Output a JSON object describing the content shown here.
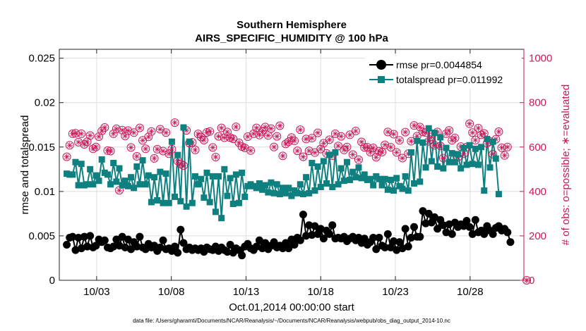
{
  "chart_data": {
    "type": "line",
    "title": [
      "Southern Hemisphere",
      "AIRS_SPECIFIC_HUMIDITY @ 100 hPa"
    ],
    "xlabel": "Oct.01,2014 00:00:00 start",
    "ylabel_left": "rmse and totalspread",
    "ylabel_right": "# of obs: o=possible; ∗=evaluated",
    "footer": "data file: /Users/gharamti/Documents/NCAR/Reanalysis/~/Documents/NCAR/Reanalysis/webpub/obs_diag_output_2014-10.nc",
    "xlim": [
      0.5,
      31.6
    ],
    "x_ticks": [
      {
        "x": 3,
        "label": "10/03"
      },
      {
        "x": 8,
        "label": "10/08"
      },
      {
        "x": 13,
        "label": "10/13"
      },
      {
        "x": 18,
        "label": "10/18"
      },
      {
        "x": 23,
        "label": "10/23"
      },
      {
        "x": 28,
        "label": "10/28"
      }
    ],
    "ylim_left": [
      0,
      0.026
    ],
    "y_ticks_left": [
      {
        "v": 0,
        "label": "0"
      },
      {
        "v": 0.005,
        "label": "0.005"
      },
      {
        "v": 0.01,
        "label": "0.01"
      },
      {
        "v": 0.015,
        "label": "0.015"
      },
      {
        "v": 0.02,
        "label": "0.02"
      },
      {
        "v": 0.025,
        "label": "0.025"
      }
    ],
    "ylim_right": [
      0,
      1040
    ],
    "y_ticks_right": [
      {
        "v": 0,
        "label": "0"
      },
      {
        "v": 200,
        "label": "200"
      },
      {
        "v": 400,
        "label": "400"
      },
      {
        "v": 600,
        "label": "600"
      },
      {
        "v": 800,
        "label": "800"
      },
      {
        "v": 1000,
        "label": "1000"
      }
    ],
    "grid": true,
    "legend": {
      "position": "top-right"
    },
    "colors": {
      "rmse": "#000000",
      "spread": "#0f8080",
      "obs": "#c8195a"
    },
    "series": [
      {
        "name": "rmse pr=0.0044854",
        "values": [
          0.004,
          0.0048,
          0.0049,
          0.0034,
          0.0048,
          0.0036,
          0.0049,
          0.0038,
          0.005,
          0.0037,
          0.0039,
          0.0046,
          0.0043,
          0.0045,
          0.0037,
          0.0036,
          0.0038,
          0.0046,
          0.0039,
          0.0049,
          0.0037,
          0.0046,
          0.0035,
          0.0043,
          0.0038,
          0.0049,
          0.0037,
          0.0035,
          0.0041,
          0.0037,
          0.0039,
          0.0033,
          0.0037,
          0.0045,
          0.0035,
          0.0036,
          0.0033,
          0.0038,
          0.0031,
          0.0057,
          0.0042,
          0.0035,
          0.0037,
          0.0034,
          0.0036,
          0.0034,
          0.0036,
          0.0032,
          0.0037,
          0.0035,
          0.0034,
          0.0038,
          0.0033,
          0.0037,
          0.0034,
          0.0032,
          0.004,
          0.0031,
          0.0036,
          0.0034,
          0.0028,
          0.0038,
          0.0041,
          0.0036,
          0.0034,
          0.0038,
          0.0045,
          0.0036,
          0.0042,
          0.0035,
          0.0039,
          0.0043,
          0.0037,
          0.0039,
          0.0036,
          0.0042,
          0.0036,
          0.0046,
          0.004,
          0.0048,
          0.0045,
          0.0074,
          0.005,
          0.0062,
          0.0051,
          0.0061,
          0.0052,
          0.0058,
          0.0047,
          0.0056,
          0.0052,
          0.0062,
          0.0047,
          0.0048,
          0.0047,
          0.0049,
          0.0044,
          0.0047,
          0.0049,
          0.0045,
          0.0048,
          0.0042,
          0.0047,
          0.004,
          0.0043,
          0.0048,
          0.0035,
          0.0048,
          0.0039,
          0.0037,
          0.0052,
          0.0037,
          0.0044,
          0.0034,
          0.0043,
          0.0036,
          0.0058,
          0.0038,
          0.0048,
          0.006,
          0.0049,
          0.0049,
          0.0078,
          0.0064,
          0.0075,
          0.0065,
          0.0071,
          0.0058,
          0.0068,
          0.0062,
          0.0054,
          0.0063,
          0.0052,
          0.0065,
          0.006,
          0.0063,
          0.0061,
          0.0067,
          0.006,
          0.0052,
          0.0068,
          0.0054,
          0.0056,
          0.0052,
          0.0061,
          0.0056,
          0.0052,
          0.0059,
          0.0061,
          0.0056,
          0.0058,
          0.0054,
          0.0043
        ]
      },
      {
        "name": "totalspread pr=0.011992",
        "values": [
          0.012,
          0.0119,
          0.0119,
          0.0133,
          0.0107,
          0.0131,
          0.0107,
          0.0108,
          0.0125,
          0.0108,
          0.0118,
          0.0112,
          0.0136,
          0.0121,
          0.0119,
          0.0108,
          0.0132,
          0.0111,
          0.0126,
          0.0107,
          0.0112,
          0.0106,
          0.0116,
          0.0104,
          0.0128,
          0.0108,
          0.0135,
          0.0108,
          0.0118,
          0.0088,
          0.0116,
          0.009,
          0.0122,
          0.0087,
          0.012,
          0.0087,
          0.0156,
          0.0094,
          0.0141,
          0.0089,
          0.0172,
          0.0083,
          0.0156,
          0.0087,
          0.0117,
          0.0108,
          0.0114,
          0.0093,
          0.0121,
          0.0088,
          0.0117,
          0.0077,
          0.0117,
          0.007,
          0.0125,
          0.0095,
          0.0115,
          0.0086,
          0.0119,
          0.0087,
          0.0121,
          0.0094,
          0.0106,
          0.0108,
          0.0106,
          0.0104,
          0.0109,
          0.0102,
          0.0107,
          0.0099,
          0.011,
          0.0098,
          0.0108,
          0.0097,
          0.0104,
          0.0098,
          0.0104,
          0.0095,
          0.0101,
          0.0098,
          0.0108,
          0.0097,
          0.0116,
          0.0098,
          0.0132,
          0.0101,
          0.0128,
          0.0105,
          0.0134,
          0.0109,
          0.0141,
          0.0105,
          0.0144,
          0.0108,
          0.0126,
          0.0112,
          0.0133,
          0.0113,
          0.0122,
          0.0116,
          0.0127,
          0.0115,
          0.0119,
          0.0113,
          0.0114,
          0.0107,
          0.0117,
          0.0114,
          0.0107,
          0.0114,
          0.0102,
          0.0113,
          0.0101,
          0.0115,
          0.0106,
          0.0103,
          0.0117,
          0.0101,
          0.0144,
          0.0109,
          0.0157,
          0.0111,
          0.0155,
          0.0127,
          0.0171,
          0.0134,
          0.0166,
          0.0128,
          0.0161,
          0.0126,
          0.0149,
          0.0133,
          0.0143,
          0.0133,
          0.0142,
          0.0126,
          0.0149,
          0.013,
          0.0152,
          0.0131,
          0.0148,
          0.013,
          0.015,
          0.0101,
          0.0159,
          0.0127,
          0.0156,
          0.0137,
          0.0097
        ]
      },
      {
        "name": "obs possible",
        "values": [
          556,
          608,
          660,
          662,
          622,
          660,
          612,
          624,
          652,
          592,
          600,
          647,
          672,
          688,
          584,
          582,
          660,
          682,
          405,
          676,
          650,
          674,
          598,
          665,
          558,
          686,
          630,
          592,
          646,
          670,
          549,
          590,
          680,
          582,
          665,
          570,
          590,
          710,
          538,
          524,
          516,
          675,
          618,
          621,
          587,
          659,
          645,
          631,
          666,
          670,
          598,
          555,
          648,
          686,
          642,
          668,
          642,
          637,
          691,
          619,
          602,
          596,
          647,
          584,
          660,
          686,
          654,
          670,
          690,
          652,
          683,
          600,
          648,
          696,
          560,
          614,
          624,
          643,
          628,
          583,
          678,
          556,
          636,
          583,
          640,
          575,
          664,
          591,
          617,
          571,
          633,
          561,
          660,
          605,
          648,
          587,
          600,
          655,
          566,
          672,
          543,
          623,
          598,
          599,
          577,
          596,
          554,
          581,
          577,
          610,
          668,
          599,
          658,
          576,
          630,
          550,
          667,
          570,
          626,
          697,
          649,
          690,
          668,
          665,
          626,
          646,
          608,
          668,
          605,
          550,
          660,
          675,
          630,
          641,
          554,
          602,
          570,
          600,
          705,
          665,
          631,
          685,
          655,
          661,
          617,
          625,
          568,
          635,
          669,
          597,
          562,
          600
        ]
      },
      {
        "name": "obs evaluated",
        "values": [
          0
        ]
      }
    ]
  }
}
